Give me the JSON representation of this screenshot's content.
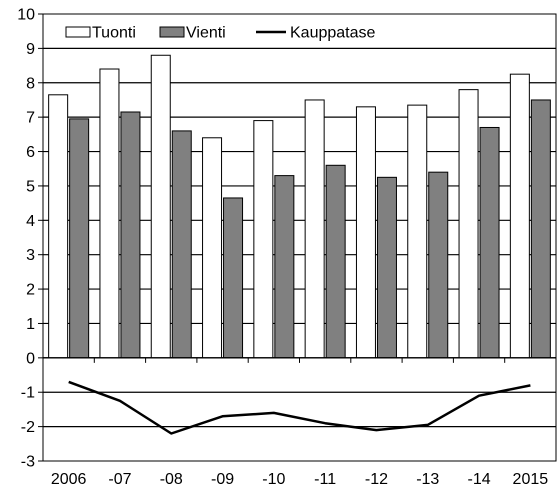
{
  "chart_data": {
    "type": "bar",
    "categories": [
      "2006",
      "-07",
      "-08",
      "-09",
      "-10",
      "-11",
      "-12",
      "-13",
      "-14",
      "2015"
    ],
    "series": [
      {
        "name": "Tuonti",
        "type": "bar",
        "color": "#ffffff",
        "values": [
          7.65,
          8.4,
          8.8,
          6.4,
          6.9,
          7.5,
          7.3,
          7.35,
          7.8,
          8.25
        ]
      },
      {
        "name": "Vienti",
        "type": "bar",
        "color": "#808080",
        "values": [
          6.95,
          7.15,
          6.6,
          4.65,
          5.3,
          5.6,
          5.25,
          5.4,
          6.7,
          7.5
        ]
      },
      {
        "name": "Kauppatase",
        "type": "line",
        "color": "#000000",
        "values": [
          -0.7,
          -1.25,
          -2.2,
          -1.7,
          -1.6,
          -1.9,
          -2.1,
          -1.95,
          -1.1,
          -0.8
        ]
      }
    ],
    "ylim": [
      -3,
      10
    ],
    "yticks": [
      "10",
      "9",
      "8",
      "7",
      "6",
      "5",
      "4",
      "3",
      "2",
      "1",
      "0",
      "-1",
      "-2",
      "-3"
    ],
    "grid": true,
    "legend": "top-left"
  }
}
